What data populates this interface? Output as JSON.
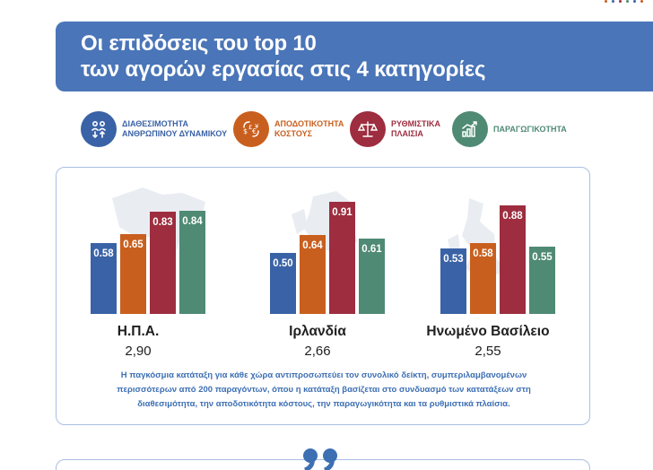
{
  "header": {
    "title_line1": "Οι επιδόσεις του top 10",
    "title_line2": "των αγορών εργασίας στις 4 κατηγορίες"
  },
  "legend": [
    {
      "line1": "ΔΙΑΘΕΣΙΜΟΤΗΤΑ",
      "line2": "ΑΝΘΡΩΠΙΝΟΥ ΔΥΝΑΜΙΚΟΥ",
      "color": "#3a62a6",
      "icon": "people-arrows-icon"
    },
    {
      "line1": "ΑΠΟΔΟΤΙΚΟΤΗΤΑ",
      "line2": "ΚΟΣΤΟΥΣ",
      "color": "#c95f1e",
      "icon": "currency-exchange-icon"
    },
    {
      "line1": "ΡΥΘΜΙΣΤΙΚΑ",
      "line2": "ΠΛΑΙΣΙΑ",
      "color": "#9d2d3f",
      "icon": "scales-icon"
    },
    {
      "line1": "ΠΑΡΑΓΩΓΙΚΟΤΗΤΑ",
      "line2": "",
      "color": "#4f8a74",
      "icon": "growth-chart-icon"
    }
  ],
  "chart_data": {
    "type": "bar",
    "ylim": [
      0,
      1
    ],
    "series_colors": [
      "#3a62a6",
      "#c95f1e",
      "#9d2d3f",
      "#4f8a74"
    ],
    "groups": [
      {
        "country": "Η.Π.Α.",
        "score": "2,90",
        "values": [
          0.58,
          0.65,
          0.83,
          0.84
        ],
        "labels": [
          "0.58",
          "0.65",
          "0.83",
          "0.84"
        ]
      },
      {
        "country": "Ιρλανδία",
        "score": "2,66",
        "values": [
          0.5,
          0.64,
          0.91,
          0.61
        ],
        "labels": [
          "0.50",
          "0.64",
          "0.91",
          "0.61"
        ]
      },
      {
        "country": "Ηνωμένο Βασίλειο",
        "score": "2,55",
        "values": [
          0.53,
          0.58,
          0.88,
          0.55
        ],
        "labels": [
          "0.53",
          "0.58",
          "0.88",
          "0.55"
        ]
      }
    ]
  },
  "footnote": {
    "line1": "Η παγκόσμια κατάταξη για κάθε χώρα αντιπροσωπεύει τον συνολικό δείκτη, συμπεριλαμβανομένων",
    "line2": "περισσότερων από 200 παραγόντων, όπου η κατάταξη βασίζεται στο συνδυασμό των κατατάξεων στη",
    "line3": "διαθεσιμότητα, την αποδοτικότητα κόστους, την παραγωγικότητα και τα ρυθμιστικά πλαίσια."
  }
}
